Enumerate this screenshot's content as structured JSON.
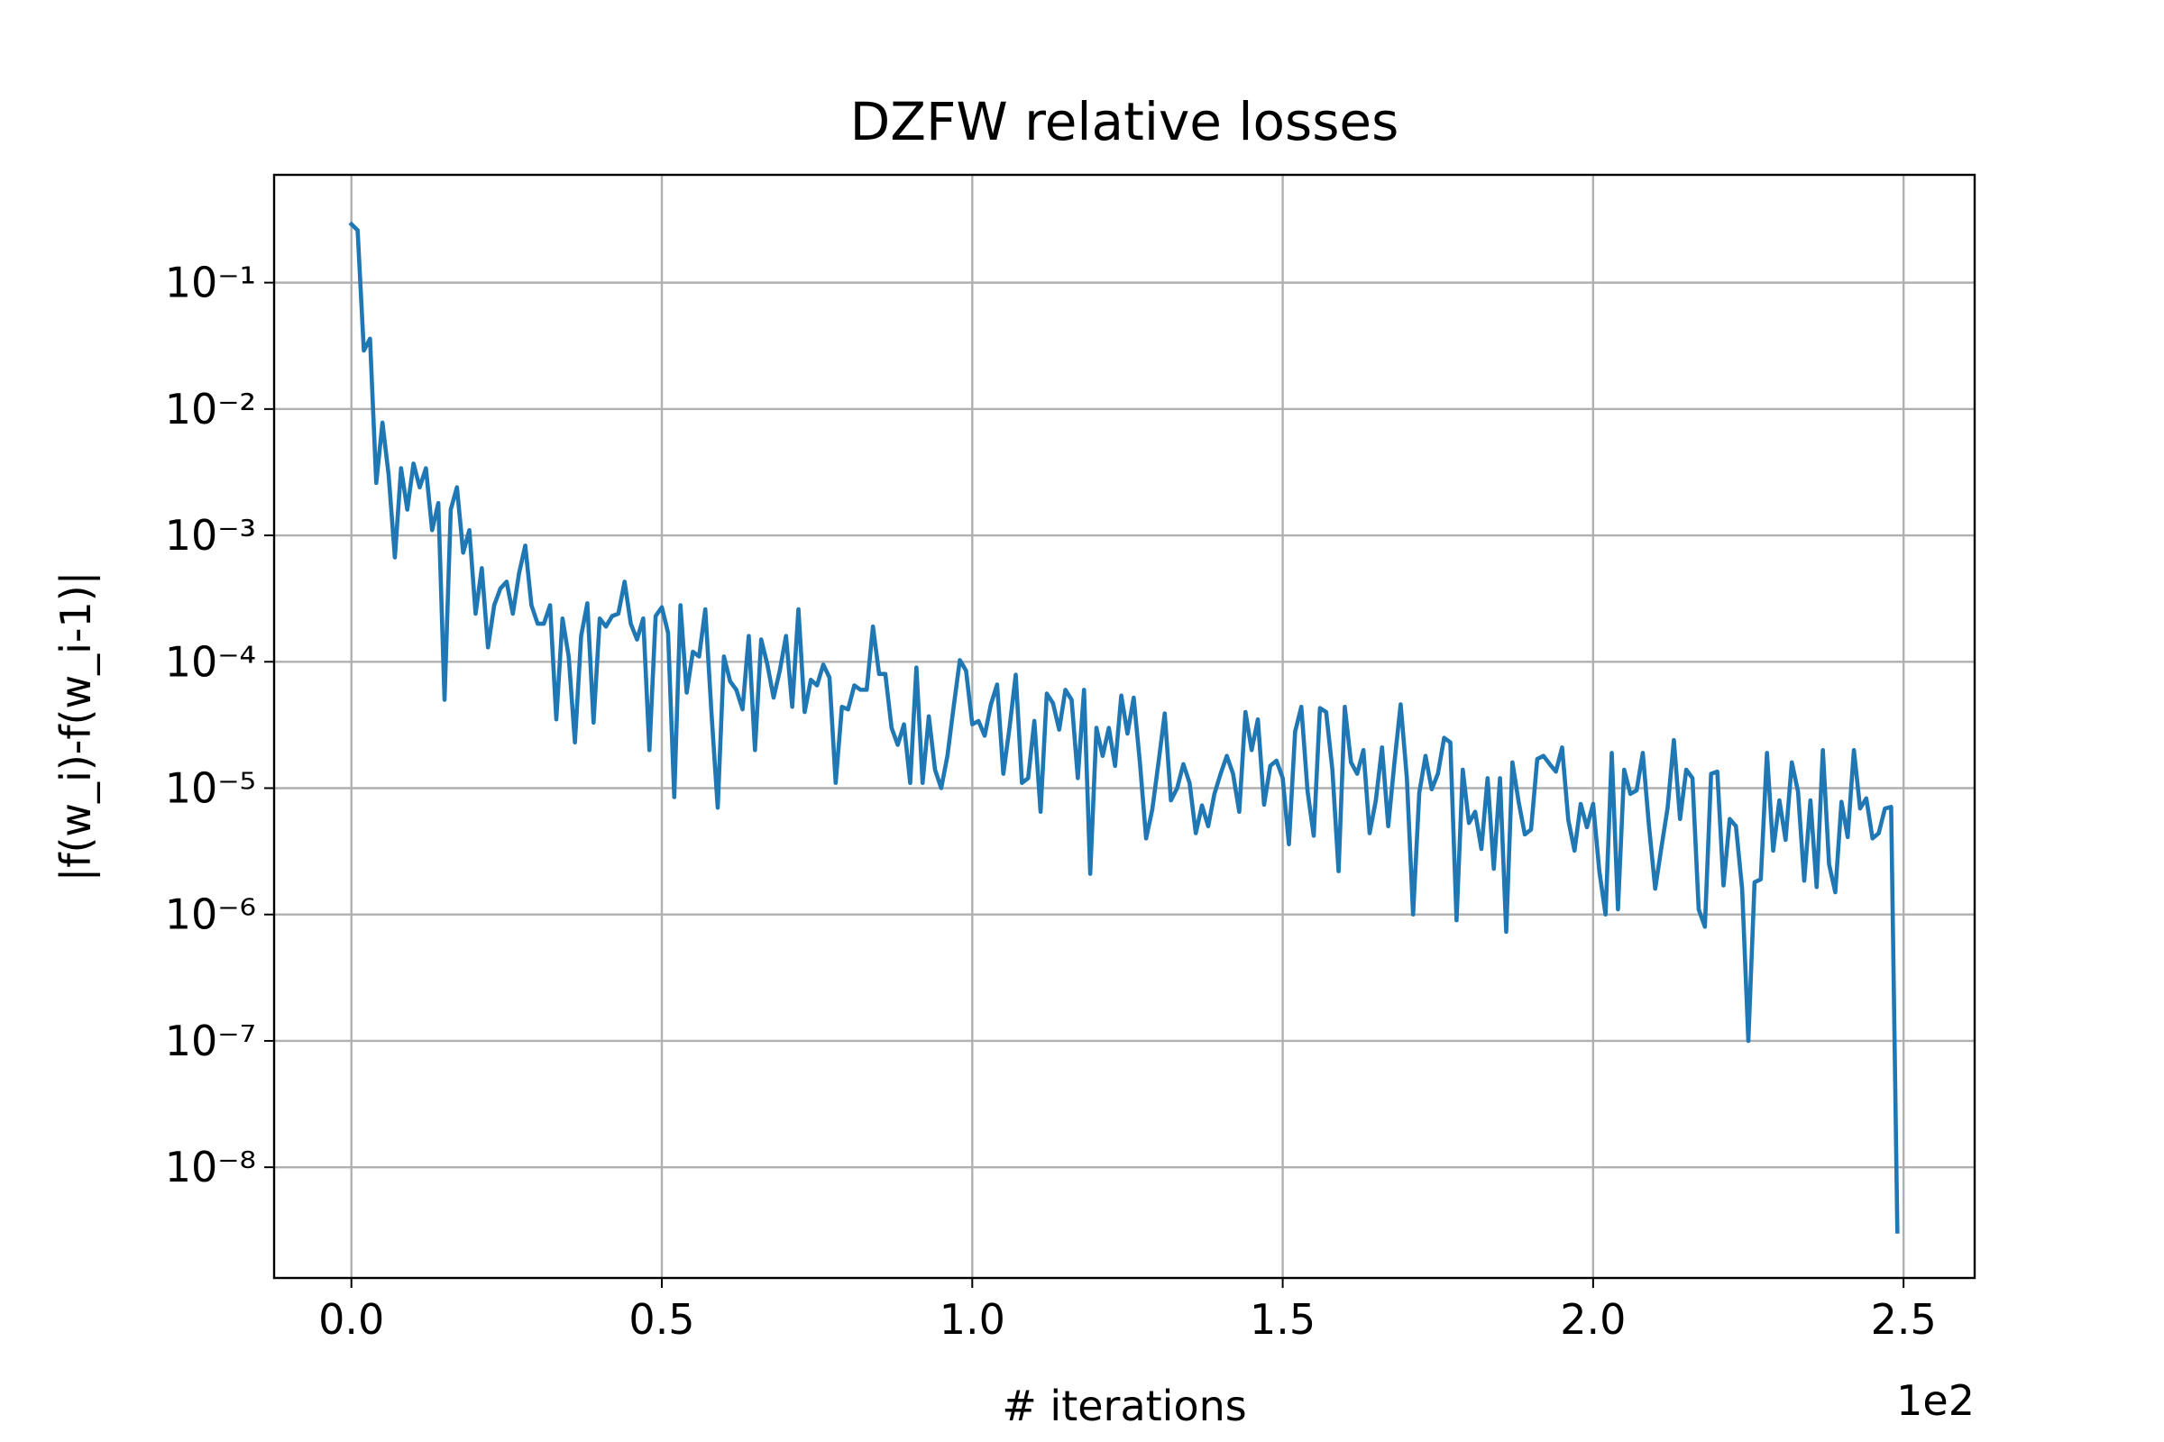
{
  "chart_data": {
    "type": "line",
    "title": "DZFW relative losses",
    "xlabel": "# iterations",
    "ylabel": "|f(w_i)-f(w_i-1)|",
    "x_offset_label": "1e2",
    "yscale": "log",
    "grid": true,
    "xlim": [
      -12.45,
      261.45
    ],
    "xticks": [
      {
        "value": 0,
        "label": "0.0"
      },
      {
        "value": 50,
        "label": "0.5"
      },
      {
        "value": 100,
        "label": "1.0"
      },
      {
        "value": 150,
        "label": "1.5"
      },
      {
        "value": 200,
        "label": "2.0"
      },
      {
        "value": 250,
        "label": "2.5"
      }
    ],
    "ylim": [
      1.33e-09,
      0.713
    ],
    "yticks": [
      {
        "value": 0.1,
        "label": "10⁻¹"
      },
      {
        "value": 0.01,
        "label": "10⁻²"
      },
      {
        "value": 0.001,
        "label": "10⁻³"
      },
      {
        "value": 0.0001,
        "label": "10⁻⁴"
      },
      {
        "value": 1e-05,
        "label": "10⁻⁵"
      },
      {
        "value": 1e-06,
        "label": "10⁻⁶"
      },
      {
        "value": 1e-07,
        "label": "10⁻⁷"
      },
      {
        "value": 1e-08,
        "label": "10⁻⁸"
      }
    ],
    "series": [
      {
        "color": "#1f77b4",
        "values": [
          0.29,
          0.26,
          0.029,
          0.036,
          0.0026,
          0.0078,
          0.003,
          0.00067,
          0.0034,
          0.0016,
          0.0037,
          0.0024,
          0.0034,
          0.0011,
          0.0018,
          5e-05,
          0.0016,
          0.0024,
          0.00073,
          0.0011,
          0.00024,
          0.00055,
          0.00013,
          0.00028,
          0.00038,
          0.00043,
          0.00024,
          0.0005,
          0.00083,
          0.00028,
          0.0002,
          0.0002,
          0.00028,
          3.5e-05,
          0.00022,
          0.00011,
          2.3e-05,
          0.00016,
          0.00029,
          3.3e-05,
          0.00022,
          0.00019,
          0.00023,
          0.00024,
          0.00043,
          0.0002,
          0.00015,
          0.00022,
          2e-05,
          0.00023,
          0.00027,
          0.00017,
          8.5e-06,
          0.00028,
          5.7e-05,
          0.00012,
          0.00011,
          0.00026,
          3.9e-05,
          7e-06,
          0.00011,
          7e-05,
          6e-05,
          4.2e-05,
          0.00016,
          2e-05,
          0.00015,
          9.5e-05,
          5.2e-05,
          8.5e-05,
          0.00016,
          4.4e-05,
          0.00026,
          4e-05,
          7.2e-05,
          6.5e-05,
          9.5e-05,
          7.5e-05,
          1.1e-05,
          4.4e-05,
          4.2e-05,
          6.5e-05,
          6e-05,
          6e-05,
          0.00019,
          8e-05,
          8e-05,
          3e-05,
          2.2e-05,
          3.2e-05,
          1.1e-05,
          9e-05,
          1.1e-05,
          3.7e-05,
          1.4e-05,
          1e-05,
          1.8e-05,
          4.4e-05,
          0.000103,
          8.5e-05,
          3.2e-05,
          3.4e-05,
          2.6e-05,
          4.6e-05,
          6.6e-05,
          1.3e-05,
          3e-05,
          7.9e-05,
          1.1e-05,
          1.2e-05,
          3.4e-05,
          6.5e-06,
          5.6e-05,
          4.7e-05,
          2.9e-05,
          6e-05,
          5e-05,
          1.2e-05,
          6e-05,
          2.1e-06,
          3e-05,
          1.8e-05,
          3e-05,
          1.5e-05,
          5.4e-05,
          2.7e-05,
          5.2e-05,
          1.6e-05,
          4e-06,
          6.8e-06,
          1.6e-05,
          3.9e-05,
          8e-06,
          1e-05,
          1.55e-05,
          1.1e-05,
          4.4e-06,
          7.3e-06,
          5e-06,
          9e-06,
          1.3e-05,
          1.8e-05,
          1.3e-05,
          6.5e-06,
          4e-05,
          2e-05,
          3.5e-05,
          7.4e-06,
          1.5e-05,
          1.65e-05,
          1.2e-05,
          3.6e-06,
          2.8e-05,
          4.4e-05,
          9.5e-06,
          4.2e-06,
          4.3e-05,
          4e-05,
          1.4e-05,
          2.2e-06,
          4.4e-05,
          1.6e-05,
          1.3e-05,
          2e-05,
          4.4e-06,
          8e-06,
          2.1e-05,
          5e-06,
          1.6e-05,
          4.6e-05,
          1.2e-05,
          1e-06,
          9.2e-06,
          1.8e-05,
          9.8e-06,
          1.3e-05,
          2.5e-05,
          2.3e-05,
          9e-07,
          1.4e-05,
          5.3e-06,
          6.5e-06,
          3.3e-06,
          1.2e-05,
          2.3e-06,
          1.2e-05,
          7.3e-07,
          1.6e-05,
          7.8e-06,
          4.3e-06,
          4.7e-06,
          1.7e-05,
          1.8e-05,
          1.55e-05,
          1.35e-05,
          2.1e-05,
          5.6e-06,
          3.2e-06,
          7.5e-06,
          4.9e-06,
          7.5e-06,
          2.2e-06,
          1e-06,
          1.9e-05,
          1.1e-06,
          1.4e-05,
          9e-06,
          9.6e-06,
          1.9e-05,
          5e-06,
          1.6e-06,
          3.4e-06,
          7e-06,
          2.4e-05,
          5.7e-06,
          1.4e-05,
          1.2e-05,
          1.1e-06,
          8e-07,
          1.3e-05,
          1.35e-05,
          1.7e-06,
          5.7e-06,
          5e-06,
          1.6e-06,
          1e-07,
          1.8e-06,
          1.9e-06,
          1.9e-05,
          3.2e-06,
          8e-06,
          3.9e-06,
          1.6e-05,
          9.4e-06,
          1.85e-06,
          8e-06,
          1.65e-06,
          2e-05,
          2.5e-06,
          1.5e-06,
          7.8e-06,
          4.1e-06,
          2e-05,
          6.9e-06,
          8.3e-06,
          4e-06,
          4.4e-06,
          6.9e-06,
          7.1e-06,
          3.1e-09
        ]
      }
    ]
  }
}
